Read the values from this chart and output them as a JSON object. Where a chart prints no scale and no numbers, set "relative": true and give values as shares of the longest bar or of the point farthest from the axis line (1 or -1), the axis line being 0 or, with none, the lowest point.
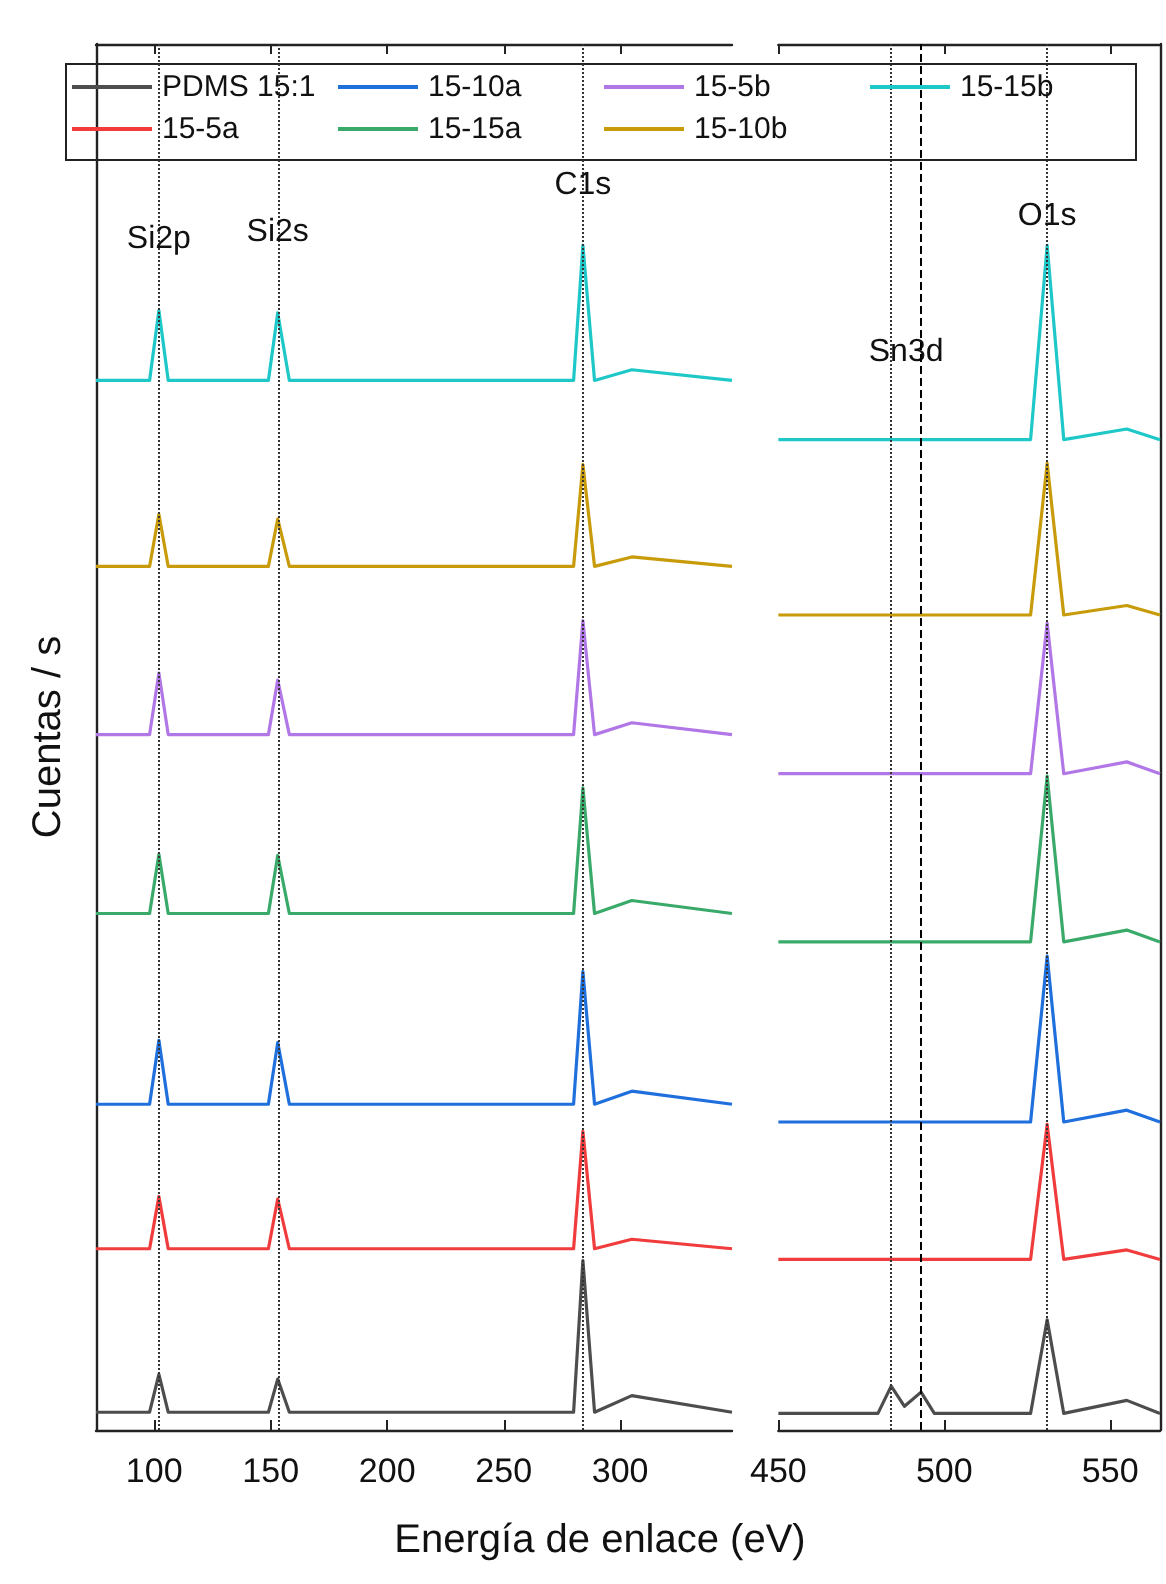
{
  "chart_data": [
    {
      "type": "line",
      "relative": true,
      "ylabel": "Cuentas / s",
      "xlabel": "Energía de enlace (eV)",
      "legend": "top",
      "x": [
        75,
        98,
        102,
        106,
        130,
        149,
        153,
        158,
        250,
        280,
        284,
        289,
        305,
        348
      ],
      "xlim": [
        75,
        348
      ],
      "xticks": [
        100,
        150,
        200,
        250,
        300
      ],
      "series": [
        {
          "name": "PDMS 15:1",
          "color": "#4d4d4d",
          "values": [
            0.015,
            0.015,
            0.047,
            0.015,
            0.015,
            0.015,
            0.043,
            0.015,
            0.015,
            0.015,
            0.143,
            0.015,
            0.029,
            0.015
          ]
        },
        {
          "name": "15-5a",
          "color": "#f03c3c",
          "values": [
            0.153,
            0.153,
            0.197,
            0.153,
            0.153,
            0.153,
            0.195,
            0.153,
            0.153,
            0.153,
            0.252,
            0.153,
            0.161,
            0.153
          ]
        },
        {
          "name": "15-10a",
          "color": "#1f6fdc",
          "values": [
            0.275,
            0.275,
            0.329,
            0.275,
            0.275,
            0.275,
            0.327,
            0.275,
            0.275,
            0.275,
            0.387,
            0.275,
            0.286,
            0.275
          ]
        },
        {
          "name": "15-15a",
          "color": "#3aaa6a",
          "values": [
            0.436,
            0.436,
            0.486,
            0.436,
            0.436,
            0.436,
            0.485,
            0.436,
            0.436,
            0.436,
            0.542,
            0.436,
            0.447,
            0.436
          ]
        },
        {
          "name": "15-5b",
          "color": "#b277e6",
          "values": [
            0.587,
            0.587,
            0.639,
            0.587,
            0.587,
            0.587,
            0.633,
            0.587,
            0.587,
            0.587,
            0.683,
            0.587,
            0.597,
            0.587
          ]
        },
        {
          "name": "15-10b",
          "color": "#c89b0a",
          "values": [
            0.729,
            0.729,
            0.773,
            0.729,
            0.729,
            0.729,
            0.769,
            0.729,
            0.729,
            0.729,
            0.815,
            0.729,
            0.737,
            0.729
          ]
        },
        {
          "name": "15-15b",
          "color": "#1ec8c8",
          "values": [
            0.886,
            0.886,
            0.945,
            0.886,
            0.886,
            0.886,
            0.943,
            0.886,
            0.886,
            0.886,
            1,
            0.886,
            0.895,
            0.886
          ]
        }
      ],
      "ref_lines": [
        {
          "axis": "x",
          "value": 102,
          "color": "#333333",
          "line_style": "dotted"
        },
        {
          "axis": "x",
          "value": 153,
          "color": "#333333",
          "line_style": "dotted"
        },
        {
          "axis": "x",
          "value": 284,
          "color": "#333333",
          "line_style": "dotted"
        }
      ],
      "annotations": [
        {
          "text": "Si2p",
          "x": 102,
          "y": 1.005
        },
        {
          "text": "Si2s",
          "x": 153,
          "y": 1.011
        },
        {
          "text": "C1s",
          "x": 284,
          "y": 1.051
        }
      ]
    },
    {
      "type": "line",
      "relative": true,
      "x": [
        450,
        480,
        484,
        488,
        493,
        497,
        526,
        531,
        536,
        555,
        565
      ],
      "xlim": [
        450,
        565
      ],
      "xticks": [
        450,
        500,
        550
      ],
      "series": [
        {
          "color": "#4d4d4d",
          "values": [
            0.014,
            0.014,
            0.037,
            0.02,
            0.032,
            0.014,
            0.014,
            0.093,
            0.014,
            0.025,
            0.014
          ]
        },
        {
          "color": "#f03c3c",
          "values": [
            0.144,
            0.144,
            0.144,
            0.144,
            0.144,
            0.144,
            0.144,
            0.258,
            0.144,
            0.152,
            0.144
          ]
        },
        {
          "color": "#1f6fdc",
          "values": [
            0.26,
            0.26,
            0.26,
            0.26,
            0.26,
            0.26,
            0.26,
            0.4,
            0.26,
            0.27,
            0.26
          ]
        },
        {
          "color": "#3aaa6a",
          "values": [
            0.412,
            0.412,
            0.412,
            0.412,
            0.412,
            0.412,
            0.412,
            0.552,
            0.412,
            0.422,
            0.412
          ]
        },
        {
          "color": "#b277e6",
          "values": [
            0.554,
            0.554,
            0.554,
            0.554,
            0.554,
            0.554,
            0.554,
            0.681,
            0.554,
            0.564,
            0.554
          ]
        },
        {
          "color": "#c89b0a",
          "values": [
            0.688,
            0.688,
            0.688,
            0.688,
            0.688,
            0.688,
            0.688,
            0.816,
            0.688,
            0.696,
            0.688
          ]
        },
        {
          "color": "#1ec8c8",
          "values": [
            0.836,
            0.836,
            0.836,
            0.836,
            0.836,
            0.836,
            0.836,
            1,
            0.836,
            0.845,
            0.836
          ]
        }
      ],
      "ref_lines": [
        {
          "axis": "x",
          "value": 484,
          "color": "#333333",
          "line_style": "dotted"
        },
        {
          "axis": "x",
          "value": 493,
          "color": "#000000",
          "line_style": "dashed"
        },
        {
          "axis": "x",
          "value": 531,
          "color": "#333333",
          "line_style": "dotted"
        }
      ],
      "annotations": [
        "Sn3d",
        {
          "text": "O1s",
          "x": 531,
          "y": 1.025
        }
      ]
    }
  ]
}
